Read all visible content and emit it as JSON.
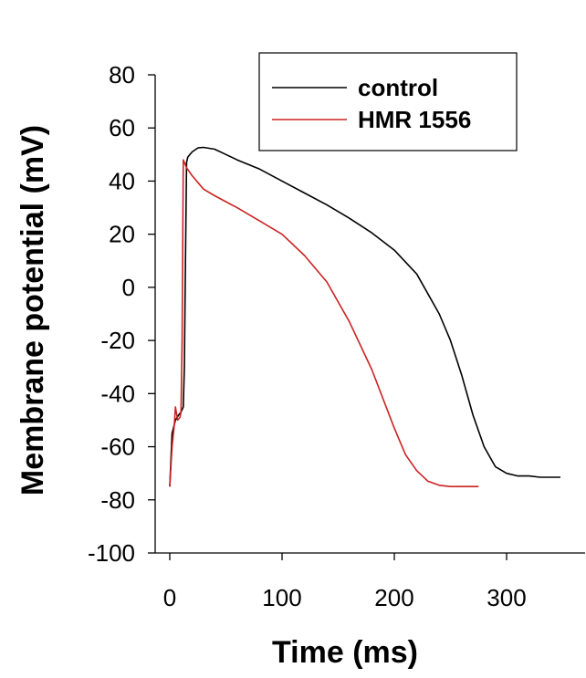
{
  "chart_data": {
    "type": "line",
    "xlabel": "Time (ms)",
    "ylabel": "Membrane potential (mV)",
    "xlim": [
      -5,
      370
    ],
    "ylim": [
      -100,
      80
    ],
    "xticks": [
      0,
      100,
      200,
      300
    ],
    "yticks": [
      -100,
      -80,
      -60,
      -40,
      -20,
      0,
      20,
      40,
      60,
      80
    ],
    "legend_position": "top-right",
    "grid": false,
    "series": [
      {
        "name": "control",
        "color": "#000000",
        "x": [
          0,
          2,
          5,
          8,
          10,
          12,
          13,
          14,
          15,
          16,
          18,
          20,
          25,
          30,
          40,
          50,
          60,
          80,
          100,
          120,
          140,
          160,
          180,
          200,
          220,
          240,
          250,
          260,
          270,
          280,
          290,
          300,
          310,
          320,
          330,
          348
        ],
        "y": [
          -75,
          -55,
          -50,
          -48,
          -47,
          -45,
          -30,
          10,
          47,
          49,
          50,
          51,
          52.5,
          52.7,
          52,
          50,
          48,
          44.5,
          40,
          35.5,
          31,
          26,
          20.5,
          14,
          5,
          -10,
          -20,
          -33,
          -48,
          -60,
          -67.5,
          -70,
          -71,
          -71,
          -71.5,
          -71.5
        ]
      },
      {
        "name": "HMR 1556",
        "color": "#cc2222",
        "x": [
          0,
          2,
          4,
          5,
          7,
          9,
          10,
          11,
          12,
          13,
          15,
          20,
          30,
          40,
          60,
          80,
          100,
          120,
          140,
          160,
          180,
          200,
          210,
          220,
          230,
          240,
          250,
          260,
          275
        ],
        "y": [
          -75,
          -60,
          -52,
          -45,
          -50,
          -49,
          -47,
          -20,
          48,
          47,
          45,
          42,
          37,
          34.5,
          30,
          25,
          20,
          12,
          2,
          -13,
          -31,
          -53,
          -63,
          -69,
          -73,
          -74.5,
          -75,
          -75,
          -75
        ]
      }
    ]
  }
}
